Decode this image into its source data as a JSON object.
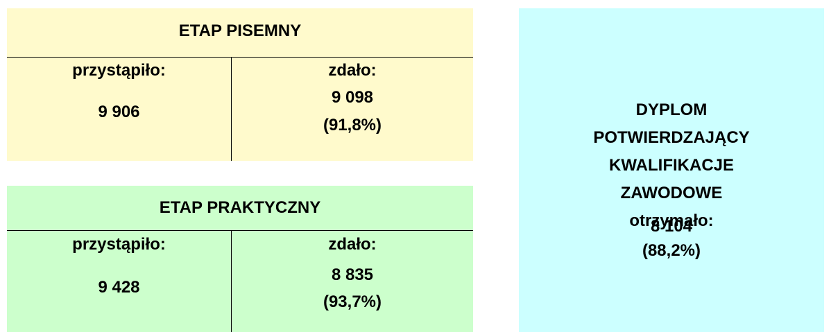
{
  "written_stage": {
    "title": "ETAP PISEMNY",
    "attempted_label": "przystąpiło:",
    "attempted": "9 906",
    "passed_label": "zdało:",
    "passed": "9 098",
    "passed_pct": "(91,8%)"
  },
  "practical_stage": {
    "title": "ETAP PRAKTYCZNY",
    "attempted_label": "przystąpiło:",
    "attempted": "9 428",
    "passed_label": "zdało:",
    "passed": "8 835",
    "passed_pct": "(93,7%)"
  },
  "diploma": {
    "lines": [
      "DYPLOM",
      "POTWIERDZAJĄCY",
      "KWALIFIKACJE",
      "ZAWODOWE",
      "otrzymało:"
    ],
    "count": "8 104",
    "pct": "(88,2%)"
  }
}
